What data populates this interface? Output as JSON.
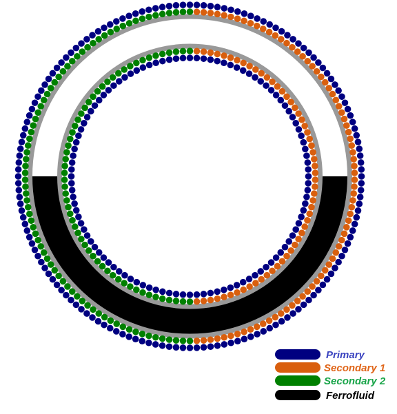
{
  "legend": [
    {
      "label": "Primary"
    },
    {
      "label": "Secondary 1"
    },
    {
      "label": "Secondary 2"
    },
    {
      "label": "Ferrofluid"
    }
  ]
}
